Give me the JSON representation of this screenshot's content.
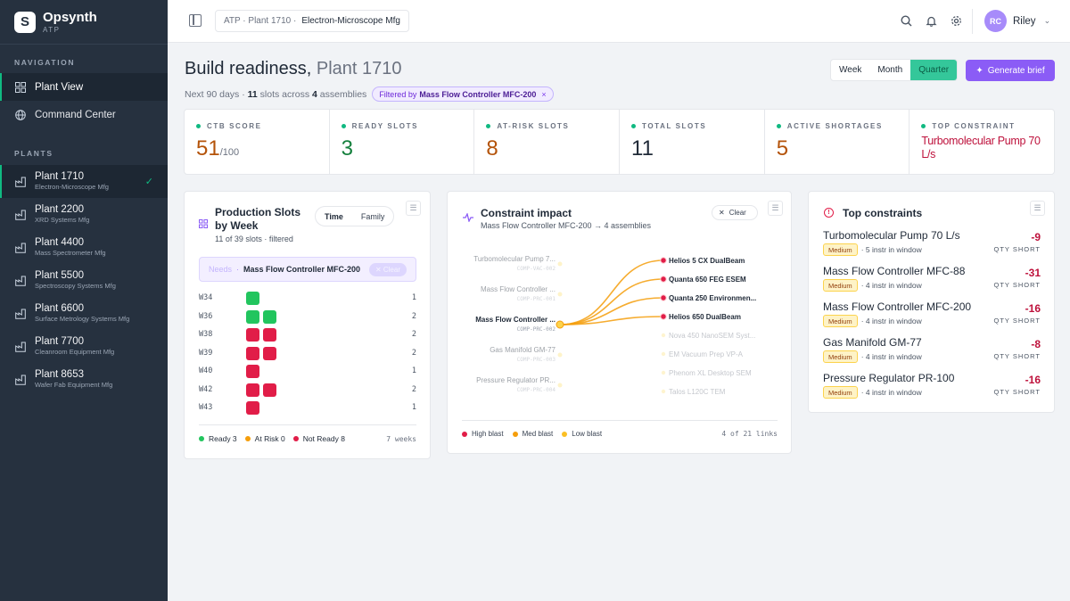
{
  "brand": {
    "name": "Opsynth",
    "sub": "ATP",
    "logo": "S"
  },
  "sidebar": {
    "nav_label": "NAVIGATION",
    "nav": [
      {
        "label": "Plant View",
        "icon": "grid-icon",
        "active": true
      },
      {
        "label": "Command Center",
        "icon": "globe-icon",
        "active": false
      }
    ],
    "plants_label": "PLANTS",
    "plants": [
      {
        "name": "Plant 1710",
        "sub": "Electron-Microscope Mfg",
        "active": true
      },
      {
        "name": "Plant 2200",
        "sub": "XRD Systems Mfg",
        "active": false
      },
      {
        "name": "Plant 4400",
        "sub": "Mass Spectrometer Mfg",
        "active": false
      },
      {
        "name": "Plant 5500",
        "sub": "Spectroscopy Systems Mfg",
        "active": false
      },
      {
        "name": "Plant 6600",
        "sub": "Surface Metrology Systems Mfg",
        "active": false
      },
      {
        "name": "Plant 7700",
        "sub": "Cleanroom Equipment Mfg",
        "active": false
      },
      {
        "name": "Plant 8653",
        "sub": "Wafer Fab Equipment Mfg",
        "active": false
      }
    ]
  },
  "topbar": {
    "crumb_prefix": "ATP · Plant 1710 ·",
    "crumb_current": "Electron-Microscope Mfg",
    "user_initials": "RC",
    "user_name": "Riley"
  },
  "header": {
    "title": "Build readiness,",
    "title_plant": "Plant 1710",
    "meta_prefix": "Next 90 days ·",
    "meta_slots": "11",
    "meta_mid": "slots across",
    "meta_assemblies": "4",
    "meta_suffix": "assemblies",
    "filter_label": "Filtered by",
    "filter_value": "Mass Flow Controller MFC-200",
    "filter_close": "×",
    "ranges": [
      "Week",
      "Month",
      "Quarter"
    ],
    "range_selected": "Quarter",
    "generate_label": "Generate brief"
  },
  "kpis": [
    {
      "label": "CTB SCORE",
      "value": "51",
      "suffix": "/100",
      "color": "#b45309"
    },
    {
      "label": "READY SLOTS",
      "value": "3",
      "suffix": "",
      "color": "#15803d"
    },
    {
      "label": "AT-RISK SLOTS",
      "value": "8",
      "suffix": "",
      "color": "#b45309"
    },
    {
      "label": "TOTAL SLOTS",
      "value": "11",
      "suffix": "",
      "color": "#1f2937"
    },
    {
      "label": "ACTIVE SHORTAGES",
      "value": "5",
      "suffix": "",
      "color": "#b45309"
    },
    {
      "label": "TOP CONSTRAINT",
      "value": "Turbomolecular Pump 70 L/s",
      "suffix": "",
      "color": "#be123c"
    }
  ],
  "production": {
    "title": "Production Slots by Week",
    "subtitle": "11 of 39 slots · filtered",
    "tabs": [
      "Time",
      "Family"
    ],
    "tab_selected": "Time",
    "needs_label": "Needs",
    "needs_sep": "·",
    "needs_value": "Mass Flow Controller MFC-200",
    "needs_clear": "✕ Clear",
    "weeks": [
      {
        "week": "W34",
        "slots": [
          "ready"
        ],
        "count": "1"
      },
      {
        "week": "W36",
        "slots": [
          "ready",
          "ready"
        ],
        "count": "2"
      },
      {
        "week": "W38",
        "slots": [
          "notready",
          "notready"
        ],
        "count": "2"
      },
      {
        "week": "W39",
        "slots": [
          "notready",
          "notready"
        ],
        "count": "2"
      },
      {
        "week": "W40",
        "slots": [
          "notready"
        ],
        "count": "1"
      },
      {
        "week": "W42",
        "slots": [
          "notready",
          "notready"
        ],
        "count": "2"
      },
      {
        "week": "W43",
        "slots": [
          "notready"
        ],
        "count": "1"
      }
    ],
    "legend": [
      {
        "label": "Ready 3",
        "color": "#22c55e"
      },
      {
        "label": "At Risk 0",
        "color": "#f59e0b"
      },
      {
        "label": "Not Ready 8",
        "color": "#e11d48"
      }
    ],
    "weeks_label": "7 weeks"
  },
  "constraint": {
    "title": "Constraint impact",
    "subtitle": "Mass Flow Controller MFC-200 → 4 assemblies",
    "clear": "Clear",
    "left_nodes": [
      {
        "name": "Turbomolecular Pump 7...",
        "code": "COMP-VAC-002",
        "active": false
      },
      {
        "name": "Mass Flow Controller ...",
        "code": "COMP-PRC-001",
        "active": false
      },
      {
        "name": "Mass Flow Controller ...",
        "code": "COMP-PRC-002",
        "active": true
      },
      {
        "name": "Gas Manifold GM-77",
        "code": "COMP-PRC-003",
        "active": false
      },
      {
        "name": "Pressure Regulator PR...",
        "code": "COMP-PRC-004",
        "active": false
      }
    ],
    "right_nodes": [
      {
        "name": "Helios 5 CX DualBeam",
        "active": true
      },
      {
        "name": "Quanta 650 FEG ESEM",
        "active": true
      },
      {
        "name": "Quanta 250 Environmen...",
        "active": true
      },
      {
        "name": "Helios 650 DualBeam",
        "active": true
      },
      {
        "name": "Nova 450 NanoSEM Syst...",
        "active": false
      },
      {
        "name": "EM Vacuum Prep VP-A",
        "active": false
      },
      {
        "name": "Phenom XL Desktop SEM",
        "active": false
      },
      {
        "name": "Talos L120C TEM",
        "active": false
      }
    ],
    "legend": [
      {
        "label": "High blast",
        "color": "#e11d48"
      },
      {
        "label": "Med blast",
        "color": "#f59e0b"
      },
      {
        "label": "Low blast",
        "color": "#fbbf24"
      }
    ],
    "links_label": "4 of 21 links"
  },
  "top_constraints": {
    "title": "Top constraints",
    "items": [
      {
        "name": "Turbomolecular Pump 70 L/s",
        "severity": "Medium",
        "detail": "· 5 instr in window",
        "qty": "-9",
        "qty_label": "QTY SHORT"
      },
      {
        "name": "Mass Flow Controller MFC-88",
        "severity": "Medium",
        "detail": "· 4 instr in window",
        "qty": "-31",
        "qty_label": "QTY SHORT"
      },
      {
        "name": "Mass Flow Controller MFC-200",
        "severity": "Medium",
        "detail": "· 4 instr in window",
        "qty": "-16",
        "qty_label": "QTY SHORT"
      },
      {
        "name": "Gas Manifold GM-77",
        "severity": "Medium",
        "detail": "· 4 instr in window",
        "qty": "-8",
        "qty_label": "QTY SHORT"
      },
      {
        "name": "Pressure Regulator PR-100",
        "severity": "Medium",
        "detail": "· 4 instr in window",
        "qty": "-16",
        "qty_label": "QTY SHORT"
      }
    ]
  }
}
